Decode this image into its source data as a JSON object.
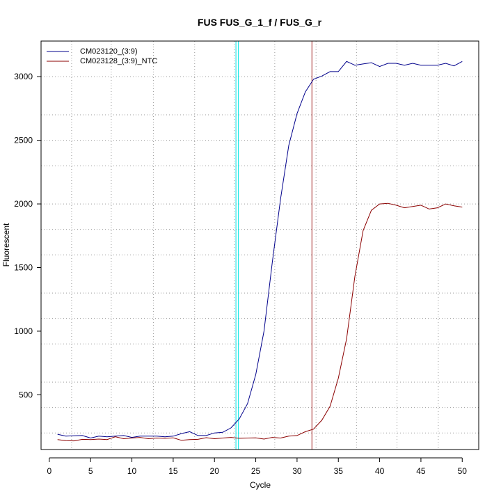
{
  "chart_data": {
    "type": "line",
    "title": "FUS  FUS_G_1_f / FUS_G_r",
    "xlabel": "Cycle",
    "ylabel": "Fluorescent",
    "xlim": [
      -1.0,
      52.0
    ],
    "ylim": [
      70,
      3280
    ],
    "xticks": [
      0,
      5,
      10,
      15,
      20,
      25,
      30,
      35,
      40,
      45,
      50
    ],
    "yticks": [
      500,
      1000,
      1500,
      2000,
      2500,
      3000
    ],
    "grid": true,
    "grid_x": [
      2.7,
      7.5,
      12.6,
      17.6,
      22.4,
      27.3,
      32.3,
      37.2,
      42.1,
      47.1,
      52.0
    ],
    "grid_y": [
      200,
      400,
      600,
      900,
      1100,
      1300,
      1600,
      1800,
      2000,
      2300,
      2500,
      2700,
      3000
    ],
    "legend_position": "top-left",
    "threshold_lines": [
      {
        "x": 22.6,
        "color": "#00e5e5"
      },
      {
        "x": 22.9,
        "color": "#00e5e5"
      },
      {
        "x": 31.8,
        "color": "#a52a2a"
      }
    ],
    "series": [
      {
        "name": "CM023120_(3:9)",
        "color": "#00008b",
        "x": [
          1,
          2,
          3,
          4,
          5,
          6,
          7,
          8,
          9,
          10,
          11,
          12,
          13,
          14,
          15,
          16,
          17,
          18,
          19,
          20,
          21,
          22,
          23,
          24,
          25,
          26,
          27,
          28,
          29,
          30,
          31,
          32,
          33,
          34,
          35,
          36,
          37,
          38,
          39,
          40,
          41,
          42,
          43,
          44,
          45,
          46,
          47,
          48,
          49,
          50
        ],
        "y": [
          190,
          175,
          178,
          180,
          160,
          175,
          170,
          175,
          180,
          165,
          175,
          175,
          175,
          170,
          175,
          195,
          210,
          180,
          180,
          200,
          205,
          240,
          310,
          430,
          660,
          1000,
          1540,
          2040,
          2460,
          2710,
          2880,
          2980,
          3005,
          3040,
          3040,
          3120,
          3090,
          3100,
          3110,
          3080,
          3105,
          3105,
          3090,
          3105,
          3090,
          3090,
          3090,
          3105,
          3085,
          3120
        ]
      },
      {
        "name": "CM023128_(3:9)_NTC",
        "color": "#8b0000",
        "x": [
          1,
          2,
          3,
          4,
          5,
          6,
          7,
          8,
          9,
          10,
          11,
          12,
          13,
          14,
          15,
          16,
          17,
          18,
          19,
          20,
          21,
          22,
          23,
          24,
          25,
          26,
          27,
          28,
          29,
          30,
          31,
          32,
          33,
          34,
          35,
          36,
          37,
          38,
          39,
          40,
          41,
          42,
          43,
          44,
          45,
          46,
          47,
          48,
          49,
          50
        ],
        "y": [
          148,
          140,
          138,
          150,
          148,
          152,
          148,
          170,
          155,
          160,
          165,
          155,
          160,
          158,
          162,
          142,
          148,
          150,
          163,
          155,
          160,
          165,
          158,
          160,
          162,
          152,
          165,
          160,
          175,
          180,
          210,
          230,
          300,
          410,
          630,
          940,
          1430,
          1790,
          1950,
          2000,
          2005,
          1990,
          1970,
          1980,
          1990,
          1960,
          1970,
          2000,
          1985,
          1975
        ]
      }
    ]
  }
}
